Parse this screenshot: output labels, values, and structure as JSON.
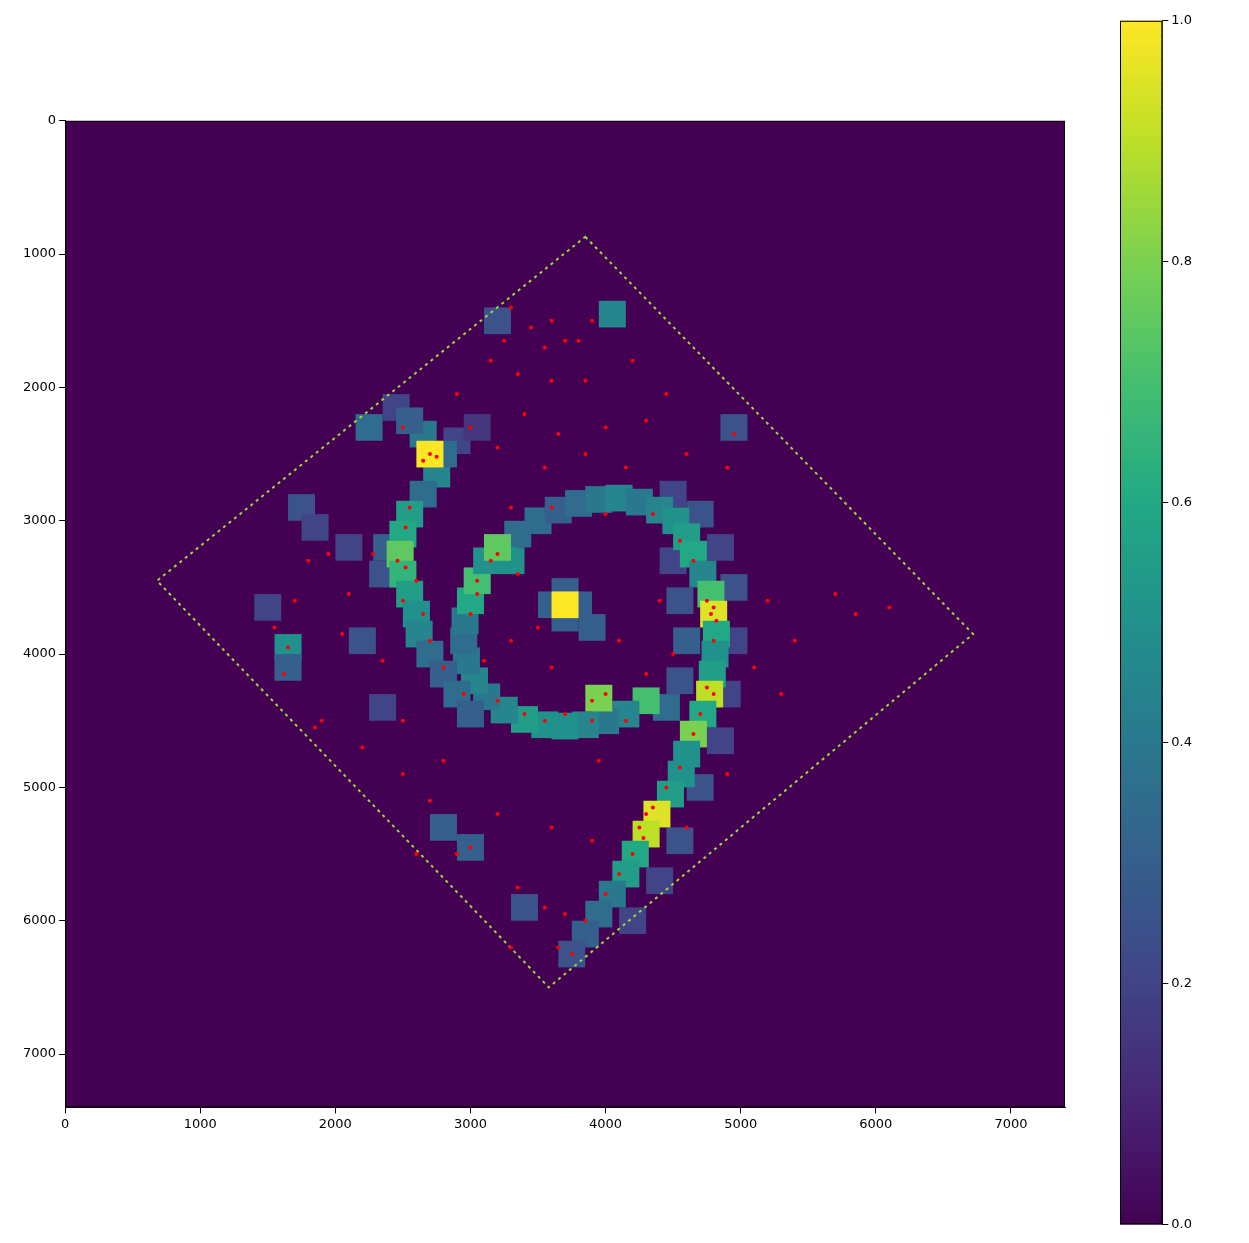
{
  "chart_data": {
    "type": "heatmap",
    "xlim": [
      0,
      7400
    ],
    "ylim": [
      7400,
      0
    ],
    "xticks": [
      0,
      1000,
      2000,
      3000,
      4000,
      5000,
      6000,
      7000
    ],
    "yticks": [
      0,
      1000,
      2000,
      3000,
      4000,
      5000,
      6000,
      7000
    ],
    "grid": false,
    "cell_size": 200,
    "cells": [
      [
        3600,
        3630,
        0.3
      ],
      [
        3800,
        3630,
        0.3
      ],
      [
        3700,
        3530,
        0.3
      ],
      [
        3700,
        3730,
        0.3
      ],
      [
        4500,
        2800,
        0.2
      ],
      [
        4700,
        2950,
        0.25
      ],
      [
        4850,
        3200,
        0.2
      ],
      [
        4950,
        3500,
        0.25
      ],
      [
        4950,
        3900,
        0.2
      ],
      [
        4900,
        4300,
        0.2
      ],
      [
        4850,
        4650,
        0.2
      ],
      [
        4700,
        5000,
        0.25
      ],
      [
        4550,
        5400,
        0.25
      ],
      [
        4400,
        5700,
        0.2
      ],
      [
        4200,
        6000,
        0.2
      ],
      [
        4500,
        3300,
        0.2
      ],
      [
        4550,
        3600,
        0.25
      ],
      [
        4600,
        3900,
        0.3
      ],
      [
        4550,
        4200,
        0.25
      ],
      [
        4450,
        4400,
        0.35
      ],
      [
        1750,
        2900,
        0.25
      ],
      [
        1850,
        3050,
        0.2
      ],
      [
        2100,
        3200,
        0.2
      ],
      [
        1500,
        3650,
        0.2
      ],
      [
        3200,
        1500,
        0.25
      ],
      [
        4950,
        2300,
        0.25
      ],
      [
        3400,
        5900,
        0.25
      ],
      [
        2350,
        4400,
        0.2
      ],
      [
        2200,
        3900,
        0.25
      ],
      [
        2380,
        3200,
        0.3
      ],
      [
        2350,
        3400,
        0.25
      ],
      [
        2900,
        2400,
        0.2
      ],
      [
        3050,
        2300,
        0.15
      ],
      [
        2450,
        2150,
        0.2
      ],
      [
        3250,
        3250,
        0.5
      ],
      [
        3350,
        3100,
        0.35
      ],
      [
        3500,
        3000,
        0.35
      ],
      [
        3650,
        2920,
        0.3
      ],
      [
        3800,
        2870,
        0.35
      ],
      [
        3950,
        2840,
        0.4
      ],
      [
        4100,
        2830,
        0.45
      ],
      [
        4250,
        2860,
        0.4
      ],
      [
        4400,
        2920,
        0.45
      ],
      [
        4520,
        3000,
        0.5
      ],
      [
        4600,
        3120,
        0.55
      ],
      [
        4650,
        3250,
        0.6
      ],
      [
        4720,
        3400,
        0.45
      ],
      [
        4780,
        3550,
        0.7
      ],
      [
        4800,
        3700,
        0.95
      ],
      [
        4820,
        3850,
        0.6
      ],
      [
        4810,
        4000,
        0.5
      ],
      [
        4790,
        4150,
        0.55
      ],
      [
        4770,
        4300,
        0.9
      ],
      [
        4720,
        4450,
        0.6
      ],
      [
        4650,
        4600,
        0.8
      ],
      [
        4600,
        4750,
        0.5
      ],
      [
        4560,
        4900,
        0.5
      ],
      [
        4480,
        5050,
        0.55
      ],
      [
        4380,
        5200,
        0.95
      ],
      [
        4300,
        5350,
        0.9
      ],
      [
        4220,
        5500,
        0.6
      ],
      [
        4150,
        5650,
        0.55
      ],
      [
        4050,
        5800,
        0.4
      ],
      [
        3950,
        5950,
        0.35
      ],
      [
        3850,
        6100,
        0.3
      ],
      [
        3750,
        6250,
        0.25
      ],
      [
        4300,
        4350,
        0.7
      ],
      [
        4150,
        4450,
        0.45
      ],
      [
        4000,
        4500,
        0.4
      ],
      [
        3850,
        4530,
        0.45
      ],
      [
        3700,
        4540,
        0.5
      ],
      [
        3550,
        4530,
        0.5
      ],
      [
        3400,
        4490,
        0.55
      ],
      [
        3250,
        4420,
        0.45
      ],
      [
        3120,
        4320,
        0.4
      ],
      [
        3030,
        4200,
        0.45
      ],
      [
        2970,
        4050,
        0.4
      ],
      [
        2950,
        3900,
        0.35
      ],
      [
        2960,
        3750,
        0.4
      ],
      [
        3000,
        3600,
        0.6
      ],
      [
        3050,
        3450,
        0.7
      ],
      [
        3120,
        3300,
        0.5
      ],
      [
        3300,
        3300,
        0.5
      ],
      [
        3200,
        3200,
        0.75
      ],
      [
        3950,
        4330,
        0.8
      ],
      [
        3900,
        3800,
        0.3
      ],
      [
        2650,
        2350,
        0.4
      ],
      [
        2550,
        2250,
        0.3
      ],
      [
        2750,
        2650,
        0.45
      ],
      [
        2650,
        2800,
        0.35
      ],
      [
        2550,
        2950,
        0.55
      ],
      [
        2500,
        3100,
        0.6
      ],
      [
        2480,
        3250,
        0.75
      ],
      [
        2500,
        3400,
        0.65
      ],
      [
        2550,
        3550,
        0.55
      ],
      [
        2600,
        3700,
        0.5
      ],
      [
        2620,
        3850,
        0.45
      ],
      [
        2700,
        4000,
        0.35
      ],
      [
        2800,
        4150,
        0.3
      ],
      [
        2900,
        4300,
        0.35
      ],
      [
        3000,
        4450,
        0.3
      ],
      [
        2800,
        2500,
        0.35
      ],
      [
        2700,
        2500,
        1.0
      ],
      [
        1650,
        3950,
        0.5
      ],
      [
        1650,
        4100,
        0.3
      ],
      [
        2250,
        2300,
        0.35
      ],
      [
        4050,
        1450,
        0.45
      ],
      [
        2800,
        5300,
        0.3
      ],
      [
        3000,
        5450,
        0.3
      ],
      [
        3700,
        3630,
        1.0
      ]
    ],
    "footprint": {
      "vertices": [
        [
          3850,
          870
        ],
        [
          6720,
          3850
        ],
        [
          3580,
          6500
        ],
        [
          680,
          3450
        ]
      ],
      "edge_value": 0.85
    },
    "colorbar": {
      "range": [
        0,
        1
      ],
      "ticks": [
        {
          "value": 0,
          "label": "0.0"
        },
        0.2,
        0.4,
        0.6,
        0.8,
        {
          "value": 1,
          "label": "1.0"
        }
      ]
    },
    "series": [
      {
        "type": "scatter",
        "color": "red",
        "marker": "o",
        "points": [
          [
            3300,
            1400
          ],
          [
            3450,
            1550
          ],
          [
            3600,
            1500
          ],
          [
            3700,
            1650
          ],
          [
            3800,
            1650
          ],
          [
            3900,
            1500
          ],
          [
            3550,
            1700
          ],
          [
            3250,
            1650
          ],
          [
            3150,
            1800
          ],
          [
            3350,
            1900
          ],
          [
            3600,
            1950
          ],
          [
            3850,
            1950
          ],
          [
            4200,
            1800
          ],
          [
            4450,
            2050
          ],
          [
            4300,
            2250
          ],
          [
            4000,
            2300
          ],
          [
            3650,
            2350
          ],
          [
            3400,
            2200
          ],
          [
            2900,
            2050
          ],
          [
            3000,
            2300
          ],
          [
            3200,
            2450
          ],
          [
            3550,
            2600
          ],
          [
            3850,
            2500
          ],
          [
            4150,
            2600
          ],
          [
            4600,
            2500
          ],
          [
            4950,
            2350
          ],
          [
            4900,
            2600
          ],
          [
            2700,
            2500
          ],
          [
            2650,
            2550
          ],
          [
            2750,
            2520
          ],
          [
            2500,
            2300
          ],
          [
            2550,
            2900
          ],
          [
            2520,
            3050
          ],
          [
            2460,
            3300
          ],
          [
            2520,
            3350
          ],
          [
            2600,
            3450
          ],
          [
            2500,
            3600
          ],
          [
            2650,
            3700
          ],
          [
            2700,
            3900
          ],
          [
            2800,
            4100
          ],
          [
            2950,
            4300
          ],
          [
            2280,
            3250
          ],
          [
            2100,
            3550
          ],
          [
            1950,
            3250
          ],
          [
            1800,
            3300
          ],
          [
            1700,
            3600
          ],
          [
            1650,
            3950
          ],
          [
            1620,
            4150
          ],
          [
            1550,
            3800
          ],
          [
            2050,
            3850
          ],
          [
            2350,
            4050
          ],
          [
            1900,
            4500
          ],
          [
            2200,
            4700
          ],
          [
            2500,
            4500
          ],
          [
            3050,
            3450
          ],
          [
            3050,
            3550
          ],
          [
            3000,
            3700
          ],
          [
            3200,
            3250
          ],
          [
            3150,
            3300
          ],
          [
            3350,
            3400
          ],
          [
            3100,
            4050
          ],
          [
            3200,
            4350
          ],
          [
            3400,
            4450
          ],
          [
            3550,
            4500
          ],
          [
            3700,
            4450
          ],
          [
            3900,
            4500
          ],
          [
            4000,
            4300
          ],
          [
            3900,
            4350
          ],
          [
            4150,
            4500
          ],
          [
            3300,
            3900
          ],
          [
            3500,
            3800
          ],
          [
            3600,
            4100
          ],
          [
            3300,
            2900
          ],
          [
            3600,
            2900
          ],
          [
            4000,
            2950
          ],
          [
            4350,
            2950
          ],
          [
            4550,
            3150
          ],
          [
            4650,
            3300
          ],
          [
            4750,
            3600
          ],
          [
            4800,
            3650
          ],
          [
            4780,
            3700
          ],
          [
            4820,
            3750
          ],
          [
            4800,
            3900
          ],
          [
            4750,
            4250
          ],
          [
            4800,
            4300
          ],
          [
            4700,
            4450
          ],
          [
            4650,
            4600
          ],
          [
            4550,
            4850
          ],
          [
            4450,
            5000
          ],
          [
            4350,
            5150
          ],
          [
            4300,
            5200
          ],
          [
            4250,
            5300
          ],
          [
            4280,
            5380
          ],
          [
            4200,
            5500
          ],
          [
            4100,
            5650
          ],
          [
            4000,
            5800
          ],
          [
            3850,
            6000
          ],
          [
            3750,
            6250
          ],
          [
            4100,
            3900
          ],
          [
            4300,
            4150
          ],
          [
            4400,
            3600
          ],
          [
            4500,
            4000
          ],
          [
            5200,
            3600
          ],
          [
            5400,
            3900
          ],
          [
            5700,
            3550
          ],
          [
            5850,
            3700
          ],
          [
            6100,
            3650
          ],
          [
            5100,
            4100
          ],
          [
            5300,
            4300
          ],
          [
            2900,
            5500
          ],
          [
            3000,
            5450
          ],
          [
            3200,
            5200
          ],
          [
            3350,
            5750
          ],
          [
            3550,
            5900
          ],
          [
            3700,
            5950
          ],
          [
            3300,
            6200
          ],
          [
            3650,
            6200
          ],
          [
            2700,
            5100
          ],
          [
            2500,
            4900
          ],
          [
            3600,
            5300
          ],
          [
            3900,
            5400
          ],
          [
            4900,
            4900
          ],
          [
            4600,
            5300
          ],
          [
            3950,
            4800
          ],
          [
            2800,
            4800
          ],
          [
            1850,
            4550
          ],
          [
            2600,
            5500
          ]
        ]
      }
    ]
  }
}
